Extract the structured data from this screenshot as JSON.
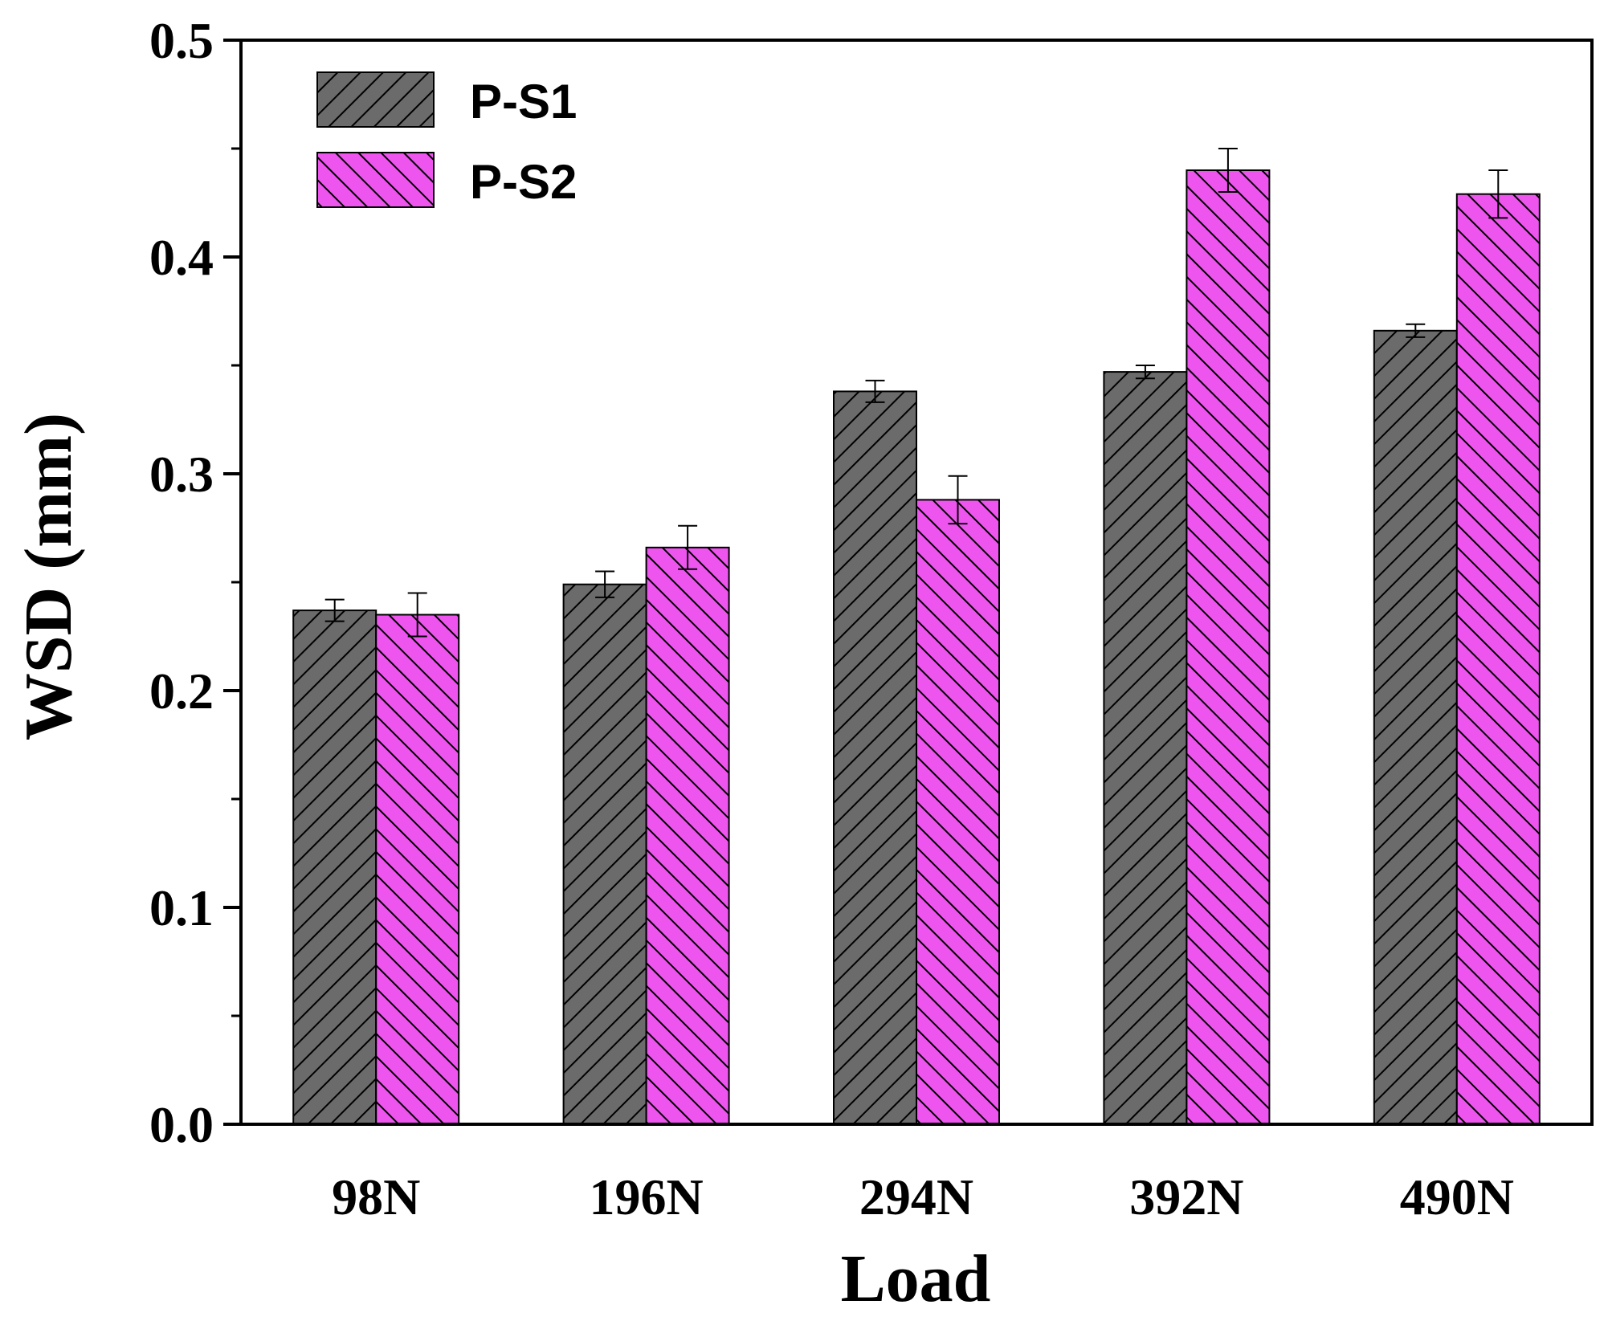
{
  "chart_data": {
    "type": "bar",
    "title": "",
    "xlabel": "Load",
    "ylabel": "WSD (mm)",
    "categories": [
      "98N",
      "196N",
      "294N",
      "392N",
      "490N"
    ],
    "ylim": [
      0.0,
      0.5
    ],
    "yticks": [
      "0.0",
      "0.1",
      "0.2",
      "0.3",
      "0.4",
      "0.5"
    ],
    "legend_position": "top-left",
    "series": [
      {
        "name": "P-S1",
        "color": "#6b6b6b",
        "hatch": "forward-diagonal",
        "values": [
          0.237,
          0.249,
          0.338,
          0.347,
          0.366
        ],
        "errors": [
          0.005,
          0.006,
          0.005,
          0.003,
          0.003
        ]
      },
      {
        "name": "P-S2",
        "color": "#ee55ee",
        "hatch": "back-diagonal",
        "values": [
          0.235,
          0.266,
          0.288,
          0.44,
          0.429
        ],
        "errors": [
          0.01,
          0.01,
          0.011,
          0.01,
          0.011
        ]
      }
    ]
  }
}
